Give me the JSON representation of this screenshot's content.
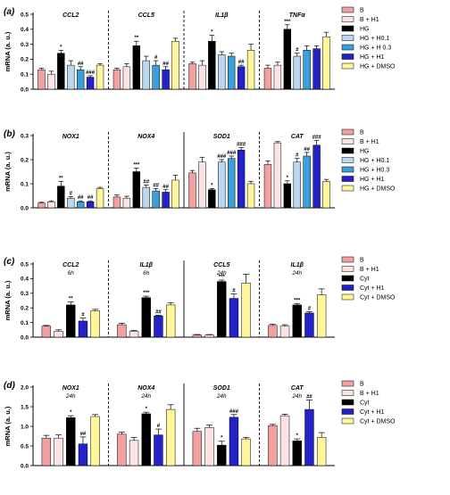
{
  "chart_data": [
    {
      "type": "bar",
      "panel_label": "(a)",
      "ylabel": "mRNA (a. u.)",
      "ylim": [
        0,
        0.5
      ],
      "yticks": [
        "0.0",
        "0.1",
        "0.2",
        "0.3",
        "0.4",
        "0.5"
      ],
      "grid": false,
      "legend": {
        "position": "right",
        "entries": [
          "B",
          "B + H1",
          "HG",
          "HG + H0.1",
          "HG + H 0.3",
          "HG + H1",
          "HG + DMSO"
        ]
      },
      "series_colors": [
        "#f2a0a0",
        "#fbe3e3",
        "#000000",
        "#bcd8ef",
        "#3aa0dc",
        "#2222c8",
        "#fff59a"
      ],
      "groups": [
        {
          "title": "CCL2",
          "italic": true,
          "values": [
            0.13,
            0.1,
            0.24,
            0.16,
            0.13,
            0.08,
            0.16
          ],
          "errors": [
            0.01,
            0.02,
            0.02,
            0.03,
            0.02,
            0.01,
            0.01
          ],
          "annotations": [
            "",
            "",
            "*",
            "",
            "##",
            "###",
            ""
          ]
        },
        {
          "title": "CCL5",
          "italic": true,
          "values": [
            0.13,
            0.15,
            0.29,
            0.19,
            0.16,
            0.13,
            0.32
          ],
          "errors": [
            0.01,
            0.02,
            0.03,
            0.03,
            0.03,
            0.02,
            0.02
          ],
          "annotations": [
            "",
            "",
            "**",
            "",
            "#",
            "##",
            ""
          ]
        },
        {
          "title": "IL1β",
          "italic": true,
          "values": [
            0.17,
            0.16,
            0.32,
            0.23,
            0.22,
            0.15,
            0.26
          ],
          "errors": [
            0.01,
            0.03,
            0.04,
            0.02,
            0.02,
            0.01,
            0.04
          ],
          "annotations": [
            "",
            "",
            "*",
            "",
            "",
            "##",
            ""
          ]
        },
        {
          "title": "TNFα",
          "italic": true,
          "values": [
            0.14,
            0.16,
            0.4,
            0.22,
            0.26,
            0.27,
            0.35
          ],
          "errors": [
            0.02,
            0.02,
            0.03,
            0.02,
            0.03,
            0.02,
            0.03
          ],
          "annotations": [
            "",
            "",
            "***",
            "#",
            "",
            "",
            ""
          ]
        }
      ],
      "dividers": [
        "dashed",
        "dashed",
        "dashed"
      ]
    },
    {
      "type": "bar",
      "panel_label": "(b)",
      "ylabel": "mRNA (a. u.)",
      "ylim": [
        0,
        0.3
      ],
      "yticks": [
        "0.0",
        "0.1",
        "0.2",
        "0.3"
      ],
      "grid": false,
      "legend": {
        "position": "right",
        "entries": [
          "B",
          "B + H1",
          "HG",
          "HG + H0.1",
          "HG + H0.3",
          "HG + H1",
          "HG + DMSO"
        ]
      },
      "series_colors": [
        "#f2a0a0",
        "#fbe3e3",
        "#000000",
        "#bcd8ef",
        "#3aa0dc",
        "#2222c8",
        "#fff59a"
      ],
      "groups": [
        {
          "title": "NOX1",
          "italic": true,
          "values": [
            0.02,
            0.025,
            0.09,
            0.04,
            0.025,
            0.025,
            0.08
          ],
          "errors": [
            0.003,
            0.004,
            0.02,
            0.006,
            0.004,
            0.004,
            0.005
          ],
          "annotations": [
            "",
            "",
            "**",
            "#",
            "##",
            "##",
            ""
          ]
        },
        {
          "title": "NOX4",
          "italic": true,
          "values": [
            0.045,
            0.04,
            0.15,
            0.085,
            0.07,
            0.065,
            0.115
          ],
          "errors": [
            0.008,
            0.008,
            0.015,
            0.01,
            0.01,
            0.01,
            0.02
          ],
          "annotations": [
            "",
            "",
            "***",
            "##",
            "##",
            "##",
            ""
          ]
        },
        {
          "title": "SOD1",
          "italic": true,
          "values": [
            0.145,
            0.19,
            0.075,
            0.19,
            0.205,
            0.24,
            0.1
          ],
          "errors": [
            0.01,
            0.02,
            0.005,
            0.01,
            0.01,
            0.01,
            0.01
          ],
          "annotations": [
            "",
            "",
            "*",
            "###",
            "###",
            "###",
            ""
          ]
        },
        {
          "title": "CAT",
          "italic": true,
          "values": [
            0.18,
            0.27,
            0.1,
            0.19,
            0.215,
            0.26,
            0.11
          ],
          "errors": [
            0.015,
            0.005,
            0.012,
            0.015,
            0.015,
            0.02,
            0.008
          ],
          "annotations": [
            "",
            "",
            "*",
            "#",
            "##",
            "###",
            ""
          ]
        }
      ],
      "dividers": [
        "dashed",
        "solid",
        "dashed"
      ]
    },
    {
      "type": "bar",
      "panel_label": "(c)",
      "ylabel": "mRNA (a. u.)",
      "ylim": [
        0,
        0.5
      ],
      "yticks": [
        "0.0",
        "0.1",
        "0.2",
        "0.3",
        "0.4",
        "0.5"
      ],
      "grid": false,
      "legend": {
        "position": "right",
        "entries": [
          "B",
          "B + H1",
          "Cyt",
          "Cyt + H1",
          "Cyt + DMSO"
        ]
      },
      "series_colors": [
        "#f2a0a0",
        "#fbe3e3",
        "#000000",
        "#2222c8",
        "#fff59a"
      ],
      "groups": [
        {
          "title": "CCL2",
          "subtitle": "6h",
          "italic": true,
          "values": [
            0.075,
            0.04,
            0.22,
            0.11,
            0.18
          ],
          "errors": [
            0.005,
            0.01,
            0.02,
            0.02,
            0.01
          ],
          "annotations": [
            "",
            "",
            "**",
            "#",
            ""
          ]
        },
        {
          "title": "IL1β",
          "subtitle": "6h",
          "italic": true,
          "values": [
            0.085,
            0.04,
            0.27,
            0.145,
            0.22
          ],
          "errors": [
            0.01,
            0.005,
            0.01,
            0.005,
            0.015
          ],
          "annotations": [
            "",
            "",
            "***",
            "##",
            ""
          ]
        },
        {
          "title": "CCL5",
          "subtitle": "24h",
          "italic": true,
          "values": [
            0.015,
            0.015,
            0.38,
            0.265,
            0.37
          ],
          "errors": [
            0.003,
            0.003,
            0.01,
            0.03,
            0.06
          ],
          "annotations": [
            "",
            "",
            "***",
            "#",
            ""
          ]
        },
        {
          "title": "IL1β",
          "subtitle": "24h",
          "italic": true,
          "values": [
            0.08,
            0.075,
            0.22,
            0.165,
            0.29
          ],
          "errors": [
            0.008,
            0.01,
            0.01,
            0.01,
            0.04
          ],
          "annotations": [
            "",
            "",
            "***",
            "#",
            ""
          ]
        }
      ],
      "dividers": [
        "dashed",
        "solid",
        "dashed"
      ]
    },
    {
      "type": "bar",
      "panel_label": "(d)",
      "ylabel": "mRNA (a. u.)",
      "ylim": [
        0,
        2.0
      ],
      "yticks": [
        "0.0",
        "0.5",
        "1.0",
        "1.5",
        "2.0"
      ],
      "grid": false,
      "legend": {
        "position": "right",
        "entries": [
          "B",
          "B + H1",
          "Cyt",
          "Cyt + H1",
          "Cyt + DMSO"
        ]
      },
      "series_colors": [
        "#f2a0a0",
        "#fbe3e3",
        "#000000",
        "#2222c8",
        "#fff59a"
      ],
      "groups": [
        {
          "title": "NOX1",
          "subtitle": "24h",
          "italic": true,
          "values": [
            0.7,
            0.7,
            1.22,
            0.55,
            1.25
          ],
          "errors": [
            0.07,
            0.08,
            0.05,
            0.18,
            0.05
          ],
          "annotations": [
            "",
            "",
            "*",
            "##",
            ""
          ]
        },
        {
          "title": "NOX4",
          "subtitle": "24h",
          "italic": true,
          "values": [
            0.8,
            0.64,
            1.32,
            0.78,
            1.43
          ],
          "errors": [
            0.05,
            0.08,
            0.04,
            0.15,
            0.12
          ],
          "annotations": [
            "",
            "",
            "*",
            "#",
            ""
          ]
        },
        {
          "title": "SOD1",
          "subtitle": "24h",
          "italic": true,
          "values": [
            0.87,
            0.97,
            0.52,
            1.23,
            0.68
          ],
          "errors": [
            0.08,
            0.06,
            0.1,
            0.07,
            0.04
          ],
          "annotations": [
            "",
            "",
            "*",
            "###",
            ""
          ]
        },
        {
          "title": "CAT",
          "subtitle": "24h",
          "italic": true,
          "values": [
            1.02,
            1.27,
            0.63,
            1.43,
            0.72
          ],
          "errors": [
            0.03,
            0.04,
            0.05,
            0.24,
            0.12
          ],
          "annotations": [
            "",
            "",
            "*",
            "##",
            ""
          ]
        }
      ],
      "dividers": [
        "dashed",
        "solid",
        "dashed"
      ]
    }
  ]
}
